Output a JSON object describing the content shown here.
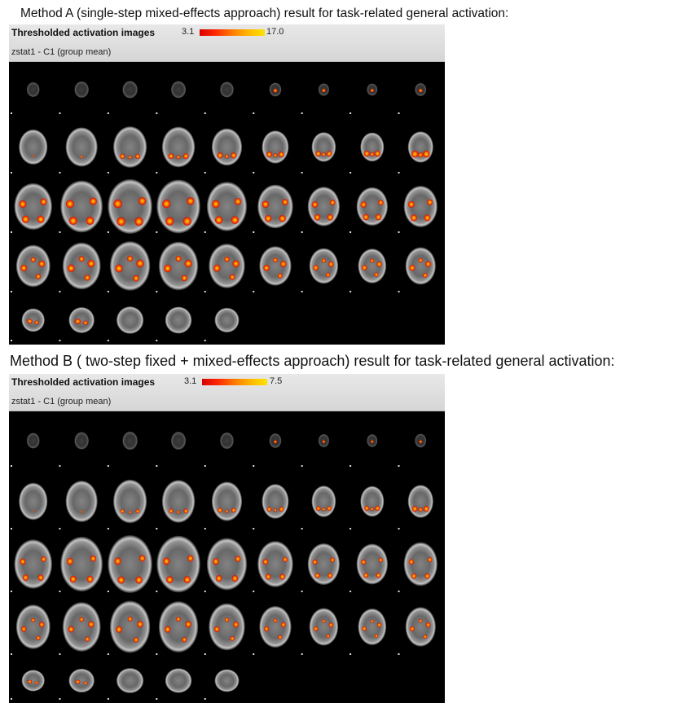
{
  "method_a": {
    "caption": "Method A (single-step mixed-effects approach) result for task-related general activation:",
    "panel_title": "Thresholded activation images",
    "scale_min": "3.1",
    "scale_max": "17.0",
    "stat_label": "zstat1  -  C1 (group mean)",
    "colorbar_colors": [
      "#d80000",
      "#ff7a00",
      "#ffe200"
    ]
  },
  "method_b": {
    "caption": "Method B ( two-step fixed + mixed-effects approach) result for task-related general activation:",
    "panel_title": "Thresholded activation images",
    "scale_min": "3.1",
    "scale_max": "7.5",
    "stat_label": "zstat1  -  C1 (group mean)",
    "colorbar_colors": [
      "#d80000",
      "#ff7a00",
      "#ffe200"
    ]
  }
}
